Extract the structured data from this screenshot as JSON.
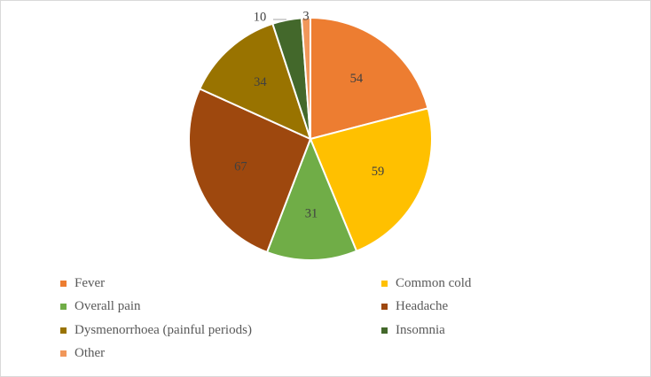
{
  "chart_data": {
    "type": "pie",
    "categories": [
      "Fever",
      "Common cold",
      "Overall pain",
      "Headache",
      "Dysmenorrhoea (painful periods)",
      "Insomnia",
      "Other"
    ],
    "values": [
      54,
      59,
      31,
      67,
      34,
      10,
      3
    ],
    "colors": [
      "#ed7d31",
      "#ffc000",
      "#70ad47",
      "#9e480e",
      "#997300",
      "#43682b",
      "#f1975a"
    ],
    "legend_position": "bottom",
    "start_angle_deg": 0,
    "direction": "clockwise"
  }
}
